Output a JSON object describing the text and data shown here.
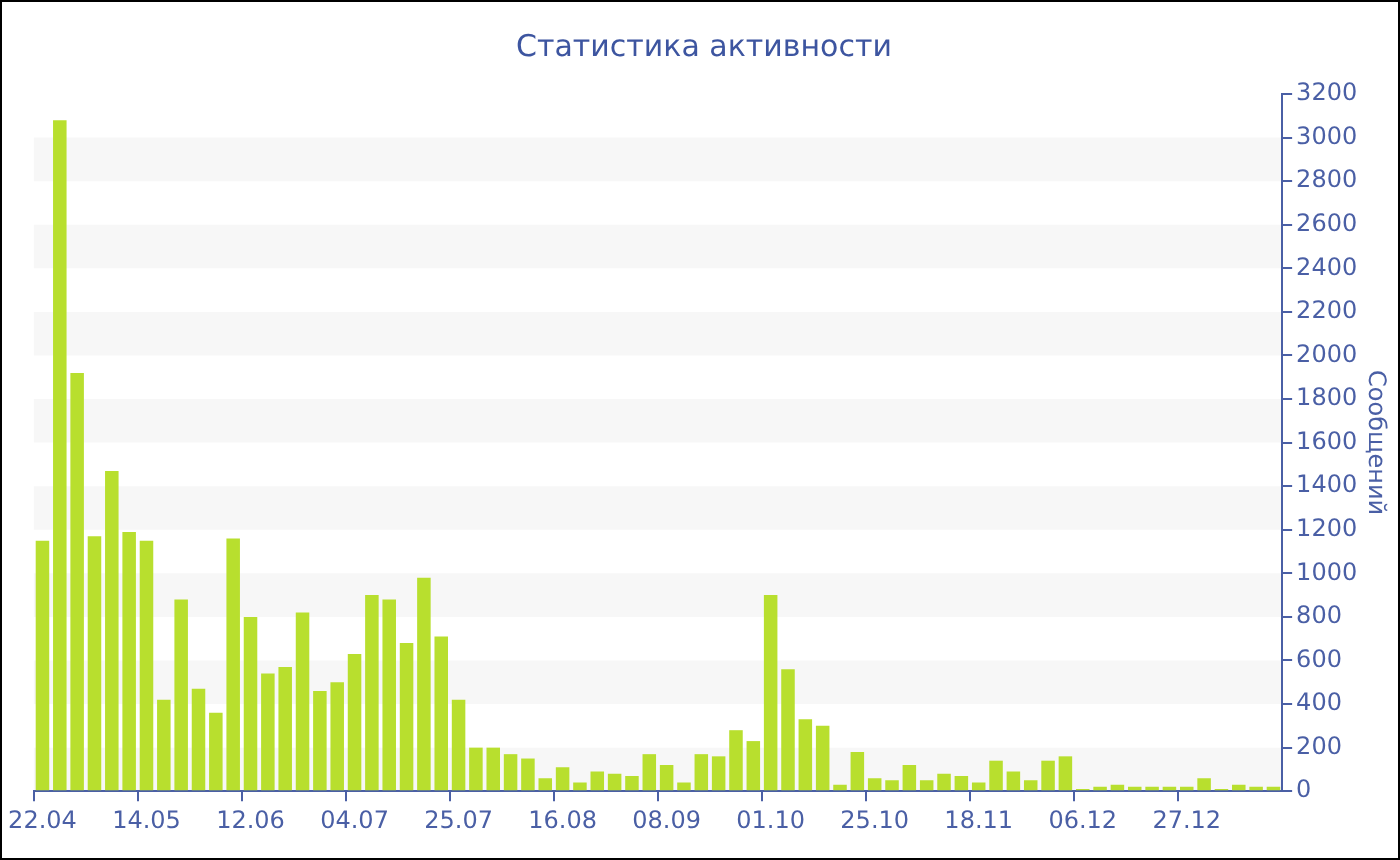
{
  "chart_data": {
    "type": "bar",
    "title": "Статистика активности",
    "ylabel": "Сообщений",
    "categories": [
      "22.04",
      null,
      null,
      null,
      null,
      null,
      "14.05",
      null,
      null,
      null,
      null,
      null,
      "12.06",
      null,
      null,
      null,
      null,
      null,
      "04.07",
      null,
      null,
      null,
      null,
      null,
      "25.07",
      null,
      null,
      null,
      null,
      null,
      "16.08",
      null,
      null,
      null,
      null,
      null,
      "08.09",
      null,
      null,
      null,
      null,
      null,
      "01.10",
      null,
      null,
      null,
      null,
      null,
      "25.10",
      null,
      null,
      null,
      null,
      null,
      "18.11",
      null,
      null,
      null,
      null,
      null,
      "06.12",
      null,
      null,
      null,
      null,
      null,
      "27.12",
      null,
      null,
      null,
      null,
      null
    ],
    "values": [
      1150,
      3080,
      1920,
      1170,
      1470,
      1190,
      1150,
      420,
      880,
      470,
      360,
      1160,
      800,
      540,
      570,
      820,
      460,
      500,
      630,
      900,
      880,
      680,
      980,
      710,
      420,
      200,
      200,
      170,
      150,
      60,
      110,
      40,
      90,
      80,
      70,
      170,
      120,
      40,
      170,
      160,
      280,
      230,
      900,
      560,
      330,
      300,
      30,
      180,
      60,
      50,
      120,
      50,
      80,
      70,
      40,
      140,
      90,
      50,
      140,
      160,
      10,
      20,
      30,
      20,
      20,
      20,
      20,
      60,
      10,
      30,
      20,
      20
    ],
    "color": "#b8df2e",
    "ylim": [
      0,
      3200
    ],
    "yticks": [
      0,
      200,
      400,
      600,
      800,
      1000,
      1200,
      1400,
      1600,
      1800,
      2000,
      2200,
      2400,
      2600,
      2800,
      3000,
      3200
    ]
  }
}
